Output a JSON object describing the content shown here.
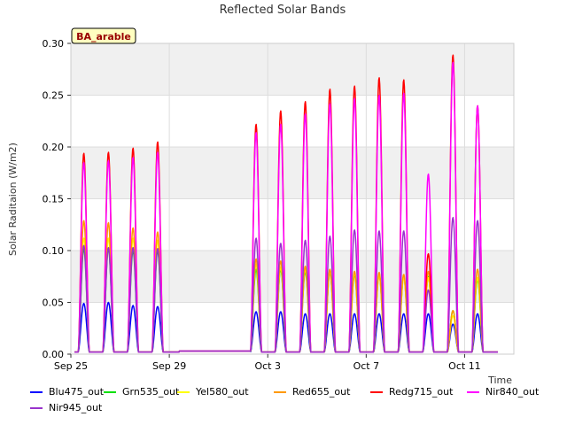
{
  "chart_data": {
    "type": "line",
    "title": "Reflected Solar Bands",
    "ylabel": "Solar Raditaion (W/m2)",
    "xlabel": "Time",
    "site_label": "BA_arable",
    "ylim": [
      0,
      0.3
    ],
    "xlim": [
      "2024-09-25",
      "2024-10-13"
    ],
    "yticks": [
      "0.00",
      "0.05",
      "0.10",
      "0.15",
      "0.20",
      "0.25",
      "0.30"
    ],
    "xticks": [
      {
        "date": "2024-09-25",
        "label": "Sep 25"
      },
      {
        "date": "2024-09-29",
        "label": "Sep 29"
      },
      {
        "date": "2024-10-03",
        "label": "Oct 3"
      },
      {
        "date": "2024-10-07",
        "label": "Oct 7"
      },
      {
        "date": "2024-10-11",
        "label": "Oct 11"
      }
    ],
    "grid": true,
    "legend_position": "bottom",
    "gap": {
      "start": "2024-09-29",
      "end": "2024-10-02",
      "value": 0.003
    },
    "days": [
      "2024-09-25",
      "2024-09-26",
      "2024-09-27",
      "2024-09-28",
      "2024-10-02",
      "2024-10-03",
      "2024-10-04",
      "2024-10-05",
      "2024-10-06",
      "2024-10-07",
      "2024-10-08",
      "2024-10-09",
      "2024-10-10",
      "2024-10-11"
    ],
    "series": [
      {
        "name": "Blu475_out",
        "color": "#0000ff",
        "daily_peaks": [
          0.047,
          0.048,
          0.045,
          0.044,
          0.039,
          0.039,
          0.037,
          0.037,
          0.037,
          0.037,
          0.037,
          0.037,
          0.027,
          0.037
        ]
      },
      {
        "name": "Grn535_out",
        "color": "#00e000",
        "daily_peaks": [
          0.1,
          0.1,
          0.098,
          0.098,
          0.08,
          0.08,
          0.078,
          0.077,
          0.075,
          0.075,
          0.073,
          0.073,
          0.04,
          0.07
        ]
      },
      {
        "name": "Yel580_out",
        "color": "#ffff00",
        "daily_peaks": [
          0.11,
          0.11,
          0.11,
          0.108,
          0.085,
          0.082,
          0.08,
          0.078,
          0.076,
          0.074,
          0.072,
          0.072,
          0.035,
          0.072
        ]
      },
      {
        "name": "Red655_out",
        "color": "#ff9900",
        "daily_peaks": [
          0.127,
          0.125,
          0.12,
          0.116,
          0.09,
          0.088,
          0.083,
          0.08,
          0.078,
          0.077,
          0.075,
          0.078,
          0.04,
          0.08
        ]
      },
      {
        "name": "Redg715_out",
        "color": "#ff0000",
        "daily_peaks": [
          0.192,
          0.193,
          0.197,
          0.203,
          0.22,
          0.233,
          0.242,
          0.254,
          0.257,
          0.265,
          0.263,
          0.095,
          0.287,
          0.238
        ]
      },
      {
        "name": "Nir840_out",
        "color": "#ff00ff",
        "daily_peaks": [
          0.183,
          0.185,
          0.188,
          0.193,
          0.212,
          0.22,
          0.23,
          0.24,
          0.245,
          0.248,
          0.25,
          0.172,
          0.28,
          0.238
        ]
      },
      {
        "name": "Nir945_out",
        "color": "#9933cc",
        "daily_peaks": [
          0.103,
          0.101,
          0.101,
          0.1,
          0.11,
          0.105,
          0.108,
          0.112,
          0.118,
          0.117,
          0.117,
          0.06,
          0.13,
          0.127
        ]
      }
    ]
  }
}
